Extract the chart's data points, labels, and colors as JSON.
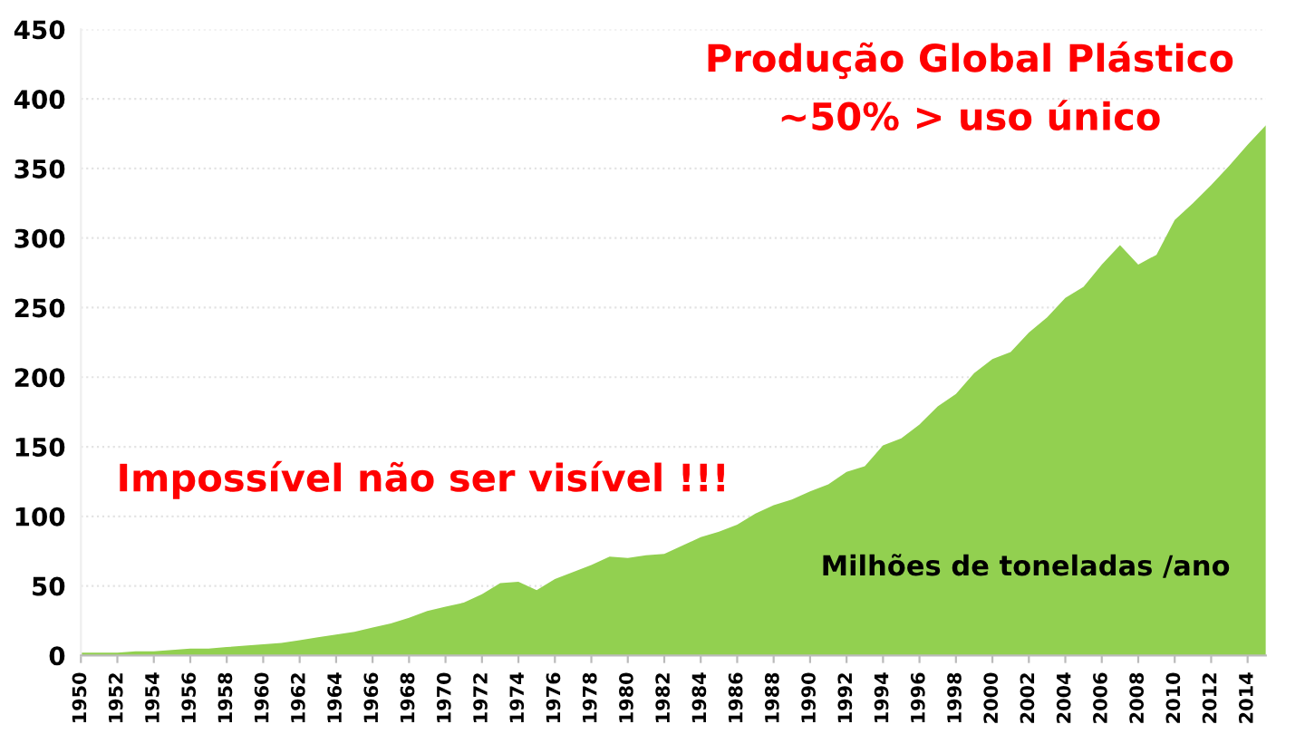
{
  "chart_data": {
    "type": "area",
    "title": "Produção Global Plástico",
    "subtitle": "~50% > uso único",
    "annotations": [
      "Impossível não ser visível !!!",
      "Milhões de toneladas /ano"
    ],
    "x": [
      1950,
      1951,
      1952,
      1953,
      1954,
      1955,
      1956,
      1957,
      1958,
      1959,
      1960,
      1961,
      1962,
      1963,
      1964,
      1965,
      1966,
      1967,
      1968,
      1969,
      1970,
      1971,
      1972,
      1973,
      1974,
      1975,
      1976,
      1977,
      1978,
      1979,
      1980,
      1981,
      1982,
      1983,
      1984,
      1985,
      1986,
      1987,
      1988,
      1989,
      1990,
      1991,
      1992,
      1993,
      1994,
      1995,
      1996,
      1997,
      1998,
      1999,
      2000,
      2001,
      2002,
      2003,
      2004,
      2005,
      2006,
      2007,
      2008,
      2009,
      2010,
      2011,
      2012,
      2013,
      2014,
      2015
    ],
    "values": [
      2,
      2,
      2,
      3,
      3,
      4,
      5,
      5,
      6,
      7,
      8,
      9,
      11,
      13,
      15,
      17,
      20,
      23,
      27,
      32,
      35,
      38,
      44,
      52,
      53,
      47,
      55,
      60,
      65,
      71,
      70,
      72,
      73,
      79,
      85,
      89,
      94,
      102,
      108,
      112,
      118,
      123,
      132,
      136,
      151,
      156,
      166,
      179,
      188,
      203,
      213,
      218,
      232,
      243,
      257,
      265,
      281,
      295,
      281,
      288,
      313,
      325,
      338,
      352,
      367,
      381
    ],
    "color": "#92d050",
    "xlim": [
      1950,
      2015
    ],
    "xticks": [
      1950,
      1952,
      1954,
      1956,
      1958,
      1960,
      1962,
      1964,
      1966,
      1968,
      1970,
      1972,
      1974,
      1976,
      1978,
      1980,
      1982,
      1984,
      1986,
      1988,
      1990,
      1992,
      1994,
      1996,
      1998,
      2000,
      2002,
      2004,
      2006,
      2008,
      2010,
      2012,
      2014
    ],
    "ylim": [
      0,
      450
    ],
    "yticks": [
      0,
      50,
      100,
      150,
      200,
      250,
      300,
      350,
      400,
      450
    ],
    "grid": "y"
  }
}
